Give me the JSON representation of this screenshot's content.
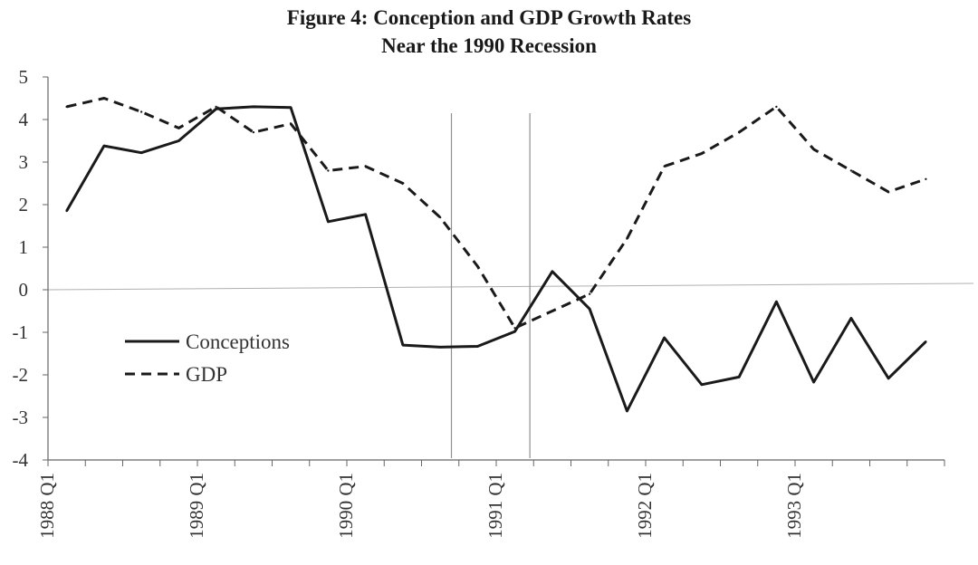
{
  "chart_data": {
    "type": "line",
    "title_lines": [
      "Figure 4: Conception and GDP Growth Rates",
      "Near the 1990 Recession"
    ],
    "xlabel": "",
    "ylabel": "",
    "ylim": [
      -4,
      5
    ],
    "yticks": [
      "5",
      "4",
      "3",
      "2",
      "1",
      "0",
      "-1",
      "-2",
      "-3",
      "-4"
    ],
    "x_tick_labels": [
      "1988 Q1",
      "1989 Q1",
      "1990 Q1",
      "1991 Q1",
      "1992 Q1",
      "1993 Q1"
    ],
    "x_tick_quarter_index": [
      0,
      4,
      8,
      12,
      16,
      20
    ],
    "x_range_quarters": [
      -0.5,
      23.5
    ],
    "recession_lines_quarter_index": [
      10.3,
      12.4
    ],
    "zero_line": true,
    "legend_placement": "center-left",
    "series": [
      {
        "name": "Conceptions",
        "style": "solid",
        "x": [
          0,
          1,
          2,
          3,
          4,
          5,
          6,
          7,
          8,
          9,
          10,
          11,
          12,
          13,
          14,
          15,
          16,
          17,
          18,
          19,
          20,
          21,
          22,
          23
        ],
        "values": [
          1.85,
          3.38,
          3.22,
          3.5,
          4.25,
          4.3,
          4.28,
          1.6,
          1.77,
          -1.3,
          -1.35,
          -1.33,
          -0.98,
          0.43,
          -0.45,
          -2.85,
          -1.13,
          -2.23,
          -2.05,
          -0.28,
          -2.17,
          -0.67,
          -2.08,
          -1.22
        ]
      },
      {
        "name": "GDP",
        "style": "dashed",
        "x": [
          0,
          1,
          2,
          3,
          4,
          5,
          6,
          7,
          8,
          9,
          10,
          11,
          12,
          13,
          14,
          15,
          16,
          17,
          18,
          19,
          20,
          21,
          22,
          23
        ],
        "values": [
          4.3,
          4.5,
          4.18,
          3.8,
          4.3,
          3.7,
          3.9,
          2.8,
          2.9,
          2.5,
          1.7,
          0.55,
          -0.9,
          -0.5,
          -0.1,
          1.2,
          2.9,
          3.2,
          3.7,
          4.3,
          3.3,
          2.8,
          2.3,
          2.6
        ]
      }
    ],
    "colors": {
      "line": "#1a1a1a",
      "axis": "#666666",
      "zero": "#b0b0b0",
      "recession": "#909090",
      "text": "#333333"
    }
  }
}
